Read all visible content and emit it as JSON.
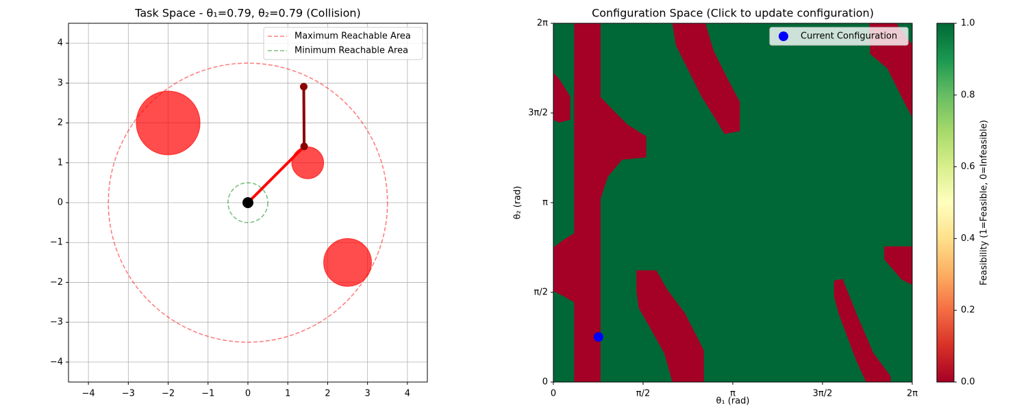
{
  "chart_data": [
    {
      "type": "arm",
      "title": "Task Space - θ₁=0.79, θ₂=0.79 (Collision)",
      "xlim": [
        -4.5,
        4.5
      ],
      "ylim": [
        -4.5,
        4.5
      ],
      "xticks": [
        {
          "value": -4,
          "label": "−4"
        },
        {
          "value": -3,
          "label": "−3"
        },
        {
          "value": -2,
          "label": "−2"
        },
        {
          "value": -1,
          "label": "−1"
        },
        0,
        1,
        2,
        3,
        4
      ],
      "yticks": [
        {
          "value": -4,
          "label": "−4"
        },
        {
          "value": -3,
          "label": "−3"
        },
        {
          "value": -2,
          "label": "−2"
        },
        {
          "value": -1,
          "label": "−1"
        },
        0,
        1,
        2,
        3,
        4
      ],
      "grid": true,
      "legend": "upper right",
      "series": [
        {
          "name": "Maximum Reachable Area",
          "color": "#ff0000",
          "radius": 3.5
        },
        {
          "name": "Minimum Reachable Area",
          "color": "#008000",
          "radius": 0.5
        }
      ],
      "obstacles": {
        "x": [
          -2,
          1.5,
          2.5
        ],
        "y": [
          2,
          1,
          -1.5
        ],
        "r": [
          0.8,
          0.4,
          0.6
        ],
        "color": "#ff0000"
      },
      "arm": {
        "x": [
          0,
          1.41,
          1.4
        ],
        "y": [
          0,
          1.41,
          2.91
        ],
        "link_colors": [
          "#ff0000",
          "#8b0000"
        ],
        "joint_color": "#8b0000",
        "base_color": "#000000"
      }
    },
    {
      "type": "heatmap",
      "title": "Configuration Space (Click to update configuration)",
      "x_label": "θ₁ (rad)",
      "y_label": "θ₂ (rad)",
      "xlim": [
        0,
        6.2832
      ],
      "ylim": [
        0,
        6.2832
      ],
      "xticks": [
        0,
        {
          "value": 1.5708,
          "label": "π/2"
        },
        {
          "value": 3.1416,
          "label": "π"
        },
        {
          "value": 4.7124,
          "label": "3π/2"
        },
        {
          "value": 6.2832,
          "label": "2π"
        }
      ],
      "yticks": [
        0,
        {
          "value": 1.5708,
          "label": "π/2"
        },
        {
          "value": 3.1416,
          "label": "π"
        },
        {
          "value": 4.7124,
          "label": "3π/2"
        },
        {
          "value": 6.2832,
          "label": "2π"
        }
      ],
      "legend": "upper right",
      "cmap": [
        "#a50026",
        "#d73027",
        "#f46d43",
        "#fdae61",
        "#fee08b",
        "#ffffbf",
        "#d9ef8b",
        "#a6d96a",
        "#66bd63",
        "#1a9850",
        "#006837"
      ],
      "clim": [
        0,
        1
      ],
      "colorbar_label": "Feasibility (1=Feasible, 0=Infeasible)",
      "colorbar_ticks": [
        {
          "value": 0,
          "label": "0.0"
        },
        0.2,
        0.4,
        0.6,
        0.8,
        {
          "value": 1,
          "label": "1.0"
        }
      ],
      "background_value": 1,
      "regions": [
        {
          "value": 0,
          "points": [
            [
              0.37,
              0
            ],
            [
              0.82,
              0
            ],
            [
              0.82,
              6.28
            ],
            [
              0.37,
              6.28
            ]
          ]
        },
        {
          "value": 0,
          "points": [
            [
              0.82,
              4.99
            ],
            [
              1.05,
              4.75
            ],
            [
              1.3,
              4.5
            ],
            [
              1.62,
              4.3
            ],
            [
              1.62,
              3.94
            ],
            [
              1.2,
              3.9
            ],
            [
              0.95,
              3.6
            ],
            [
              0.82,
              3.21
            ]
          ]
        },
        {
          "value": 0,
          "points": [
            [
              0.37,
              2.6
            ],
            [
              0.2,
              2.5
            ],
            [
              0,
              2.35
            ],
            [
              0,
              1.6
            ],
            [
              0.2,
              1.5
            ],
            [
              0.37,
              1.4
            ]
          ]
        },
        {
          "value": 0,
          "points": [
            [
              0,
              5.41
            ],
            [
              0.1,
              5.3
            ],
            [
              0.29,
              5.0
            ],
            [
              0.29,
              4.6
            ],
            [
              0.1,
              4.55
            ],
            [
              0,
              4.6
            ]
          ]
        },
        {
          "value": 0,
          "points": [
            [
              2.09,
              6.28
            ],
            [
              2.66,
              6.28
            ],
            [
              2.8,
              5.8
            ],
            [
              3.05,
              5.3
            ],
            [
              3.26,
              4.9
            ],
            [
              3.26,
              4.4
            ],
            [
              3.0,
              4.35
            ],
            [
              2.85,
              4.6
            ],
            [
              2.6,
              5.0
            ],
            [
              2.35,
              5.5
            ],
            [
              2.15,
              5.9
            ]
          ]
        },
        {
          "value": 0,
          "points": [
            [
              1.46,
              1.95
            ],
            [
              1.8,
              1.95
            ],
            [
              2.0,
              1.6
            ],
            [
              2.3,
              1.2
            ],
            [
              2.63,
              0.55
            ],
            [
              2.63,
              0
            ],
            [
              2.09,
              0
            ],
            [
              1.95,
              0.5
            ],
            [
              1.7,
              0.95
            ],
            [
              1.5,
              1.3
            ],
            [
              1.46,
              1.6
            ]
          ]
        },
        {
          "value": 0,
          "points": [
            [
              5.54,
              6.28
            ],
            [
              6.0,
              6.28
            ],
            [
              6.28,
              5.9
            ],
            [
              6.28,
              4.65
            ],
            [
              6.1,
              5.0
            ],
            [
              5.85,
              5.5
            ],
            [
              5.55,
              5.75
            ]
          ]
        },
        {
          "value": 0,
          "points": [
            [
              5.8,
              2.37
            ],
            [
              6.28,
              2.37
            ],
            [
              6.28,
              1.71
            ],
            [
              6.1,
              1.8
            ],
            [
              5.8,
              2.15
            ]
          ]
        },
        {
          "value": 0,
          "points": [
            [
              4.92,
              1.77
            ],
            [
              5.06,
              1.8
            ],
            [
              5.3,
              1.2
            ],
            [
              5.6,
              0.5
            ],
            [
              5.9,
              0.1
            ],
            [
              5.9,
              0
            ],
            [
              5.48,
              0
            ],
            [
              5.3,
              0.4
            ],
            [
              5.0,
              1.2
            ],
            [
              4.92,
              1.5
            ]
          ]
        }
      ],
      "series": [
        {
          "name": "Current Configuration",
          "color": "#0000ff",
          "x": [
            0.79
          ],
          "y": [
            0.79
          ]
        }
      ]
    }
  ]
}
